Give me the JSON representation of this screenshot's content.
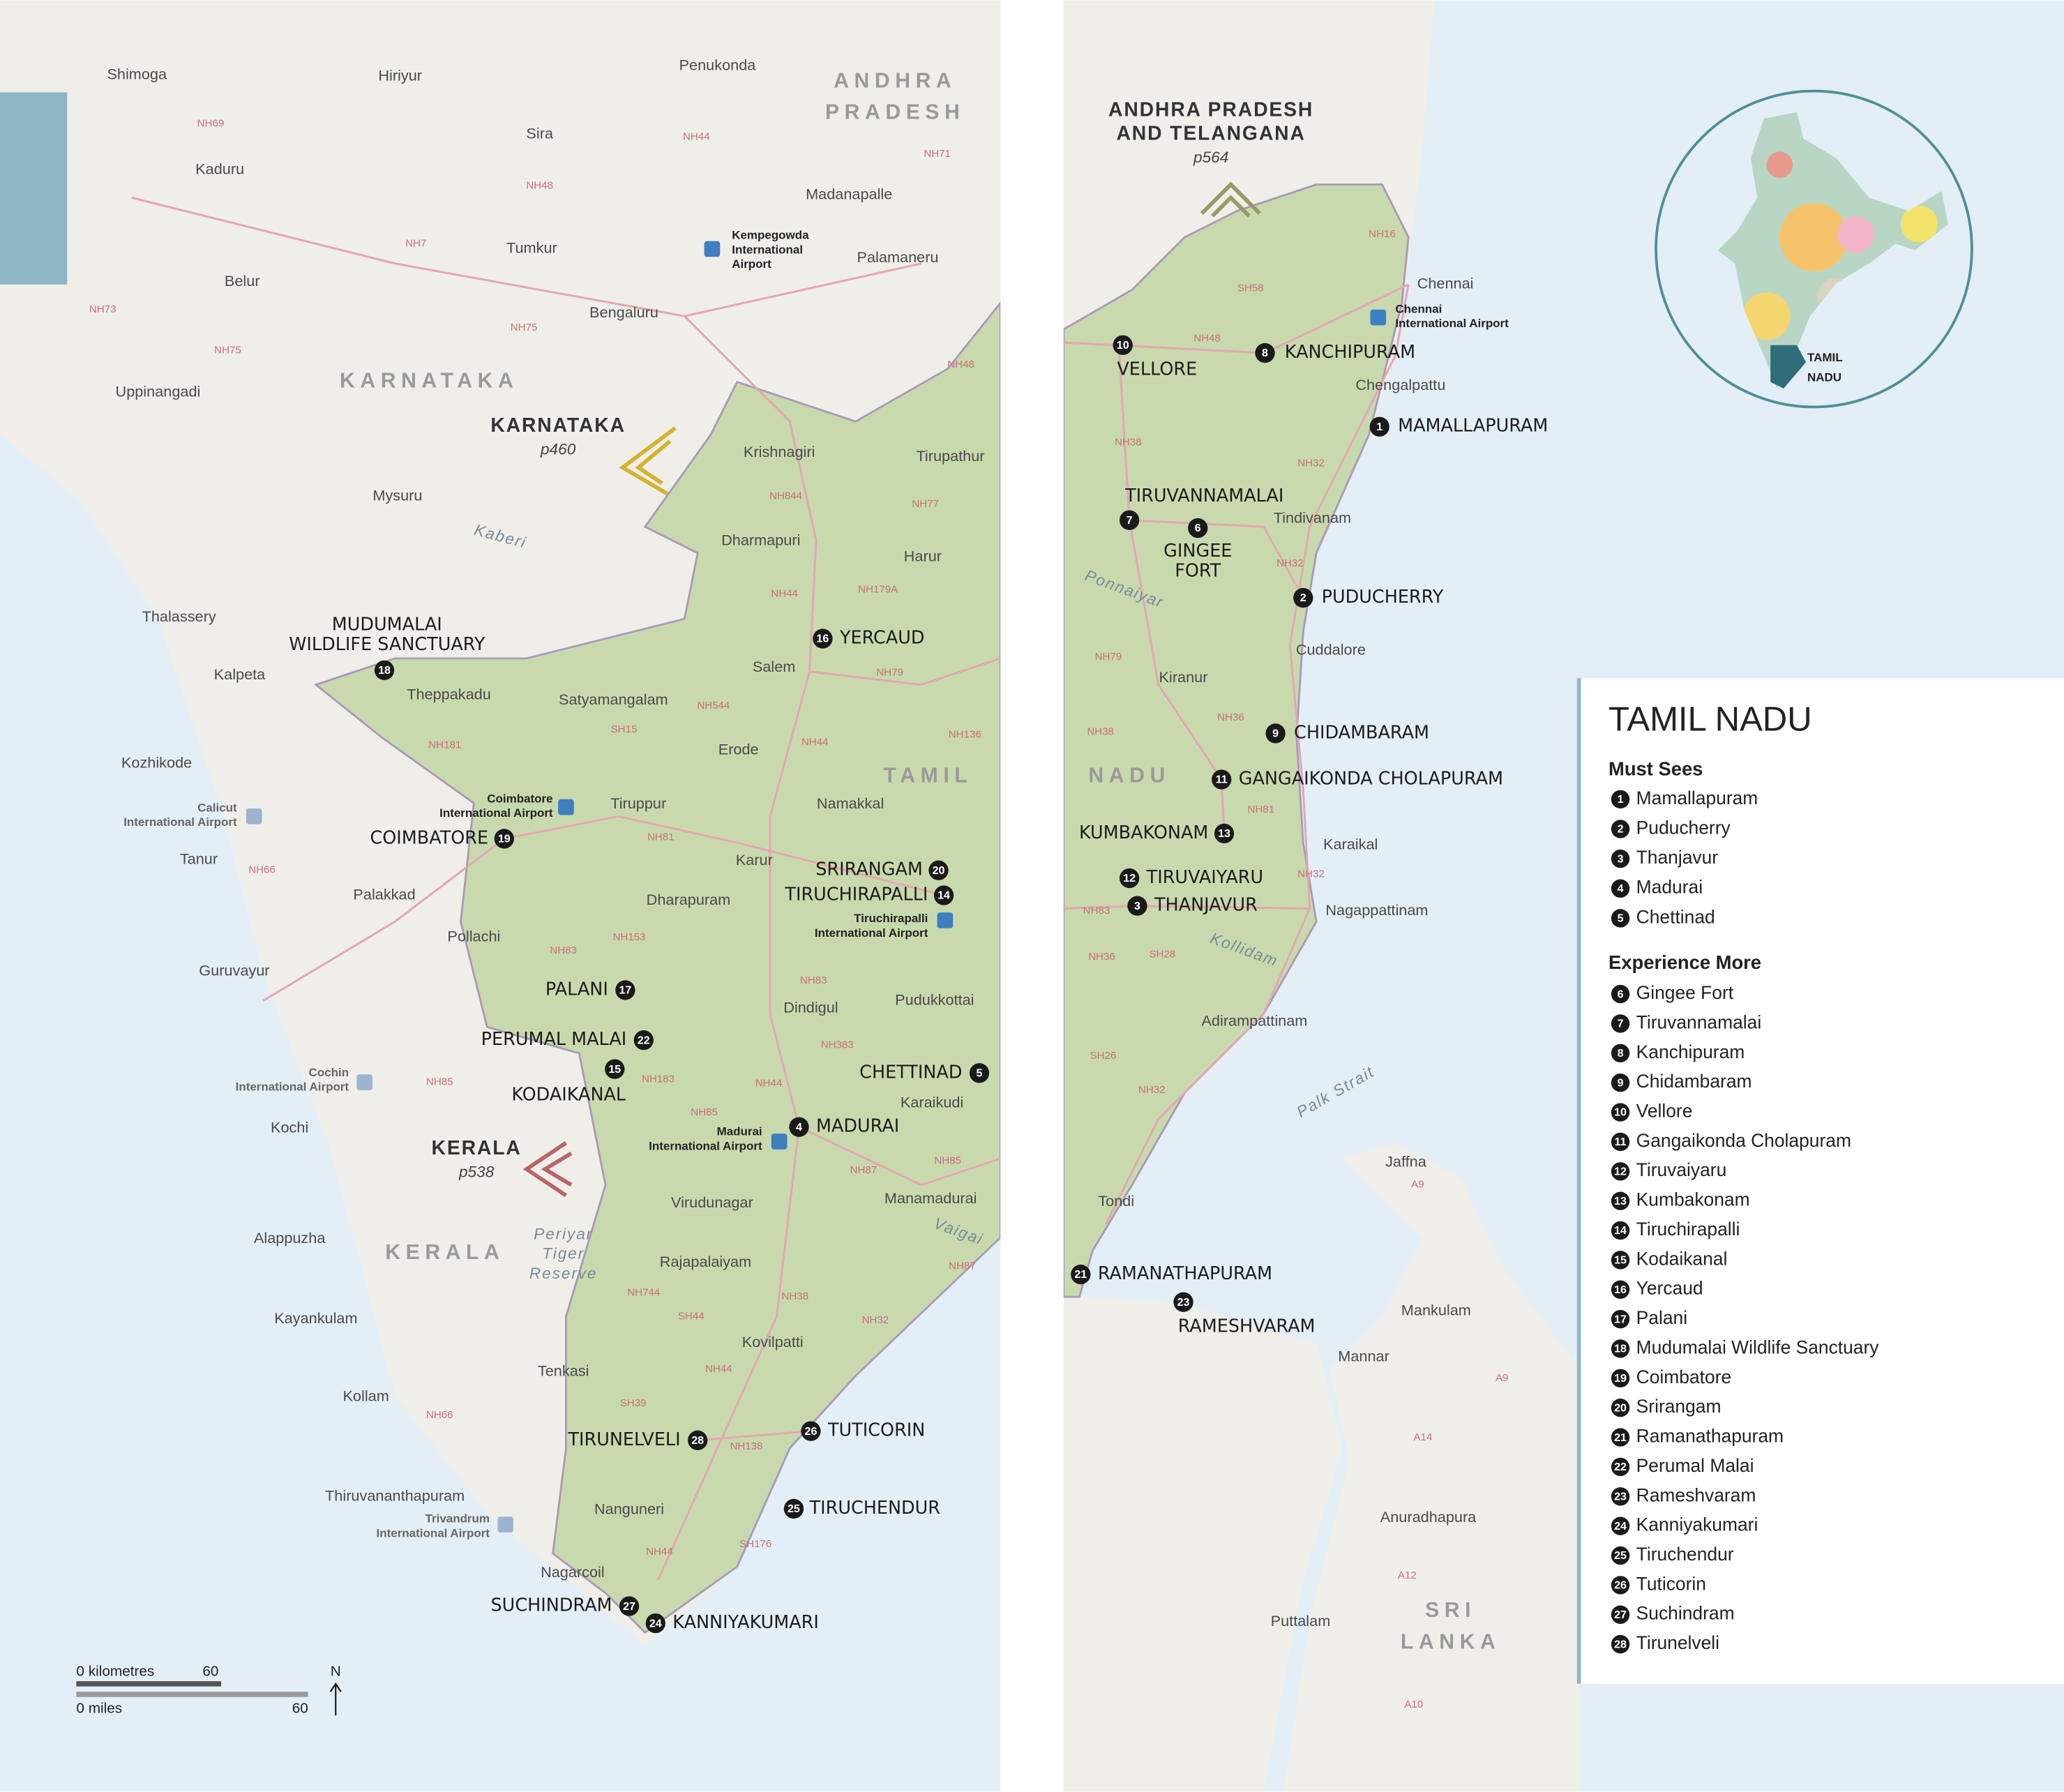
{
  "legend": {
    "title": "TAMIL NADU",
    "must_sees": {
      "heading": "Must Sees",
      "items": [
        {
          "number": 1,
          "name": "Mamallapuram"
        },
        {
          "number": 2,
          "name": "Puducherry"
        },
        {
          "number": 3,
          "name": "Thanjavur"
        },
        {
          "number": 4,
          "name": "Madurai"
        },
        {
          "number": 5,
          "name": "Chettinad"
        }
      ]
    },
    "experience_more": {
      "heading": "Experience More",
      "items": [
        {
          "number": 6,
          "name": "Gingee Fort"
        },
        {
          "number": 7,
          "name": "Tiruvannamalai"
        },
        {
          "number": 8,
          "name": "Kanchipuram"
        },
        {
          "number": 9,
          "name": "Chidambaram"
        },
        {
          "number": 10,
          "name": "Vellore"
        },
        {
          "number": 11,
          "name": "Gangaikonda Cholapuram"
        },
        {
          "number": 12,
          "name": "Tiruvaiyaru"
        },
        {
          "number": 13,
          "name": "Kumbakonam"
        },
        {
          "number": 14,
          "name": "Tiruchirapalli"
        },
        {
          "number": 15,
          "name": "Kodaikanal"
        },
        {
          "number": 16,
          "name": "Yercaud"
        },
        {
          "number": 17,
          "name": "Palani"
        },
        {
          "number": 18,
          "name": "Mudumalai Wildlife Sanctuary"
        },
        {
          "number": 19,
          "name": "Coimbatore"
        },
        {
          "number": 20,
          "name": "Srirangam"
        },
        {
          "number": 21,
          "name": "Ramanathapuram"
        },
        {
          "number": 22,
          "name": "Perumal Malai"
        },
        {
          "number": 23,
          "name": "Rameshvaram"
        },
        {
          "number": 24,
          "name": "Kanniyakumari"
        },
        {
          "number": 25,
          "name": "Tiruchendur"
        },
        {
          "number": 26,
          "name": "Tuticorin"
        },
        {
          "number": 27,
          "name": "Suchindram"
        },
        {
          "number": 28,
          "name": "Tirunelveli"
        }
      ]
    }
  },
  "map": {
    "sights": [
      {
        "number": 1,
        "label": [
          "MAMALLAPURAM"
        ]
      },
      {
        "number": 2,
        "label": [
          "PUDUCHERRY"
        ]
      },
      {
        "number": 3,
        "label": [
          "THANJAVUR"
        ]
      },
      {
        "number": 4,
        "label": [
          "MADURAI"
        ]
      },
      {
        "number": 5,
        "label": [
          "CHETTINAD"
        ]
      },
      {
        "number": 6,
        "label": [
          "GINGEE",
          "FORT"
        ]
      },
      {
        "number": 7,
        "label": [
          "TIRUVANNAMALAI"
        ]
      },
      {
        "number": 8,
        "label": [
          "KANCHIPURAM"
        ]
      },
      {
        "number": 9,
        "label": [
          "CHIDAMBARAM"
        ]
      },
      {
        "number": 10,
        "label": [
          "VELLORE"
        ]
      },
      {
        "number": 11,
        "label": [
          "GANGAIKONDA CHOLAPURAM"
        ]
      },
      {
        "number": 12,
        "label": [
          "TIRUVAIYARU"
        ]
      },
      {
        "number": 13,
        "label": [
          "KUMBAKONAM"
        ]
      },
      {
        "number": 14,
        "label": [
          "TIRUCHIRAPALLI"
        ]
      },
      {
        "number": 15,
        "label": [
          "KODAIKANAL"
        ]
      },
      {
        "number": 16,
        "label": [
          "YERCAUD"
        ]
      },
      {
        "number": 17,
        "label": [
          "PALANI"
        ]
      },
      {
        "number": 18,
        "label": [
          "MUDUMALAI",
          "WILDLIFE SANCTUARY"
        ]
      },
      {
        "number": 19,
        "label": [
          "COIMBATORE"
        ]
      },
      {
        "number": 20,
        "label": [
          "SRIRANGAM"
        ]
      },
      {
        "number": 21,
        "label": [
          "RAMANATHAPURAM"
        ]
      },
      {
        "number": 22,
        "label": [
          "PERUMAL MALAI"
        ]
      },
      {
        "number": 23,
        "label": [
          "RAMESHVARAM"
        ]
      },
      {
        "number": 24,
        "label": [
          "KANNIYAKUMARI"
        ]
      },
      {
        "number": 25,
        "label": [
          "TIRUCHENDUR"
        ]
      },
      {
        "number": 26,
        "label": [
          "TUTICORIN"
        ]
      },
      {
        "number": 27,
        "label": [
          "SUCHINDRAM"
        ]
      },
      {
        "number": 28,
        "label": [
          "TIRUNELVELI"
        ]
      }
    ],
    "towns": [
      "Shimoga",
      "Hiriyur",
      "Penukonda",
      "Sira",
      "Kaduru",
      "Madanapalle",
      "Tumkur",
      "Palamaneru",
      "Belur",
      "Bengaluru",
      "Uppinangadi",
      "Mysuru",
      "Krishnagiri",
      "Tirupathur",
      "Dharmapuri",
      "Harur",
      "Thalassery",
      "Kalpeta",
      "Salem",
      "Theppakadu",
      "Satyamangalam",
      "Erode",
      "Kozhikode",
      "Namakkal",
      "Tiruppur",
      "Tanur",
      "Karur",
      "Palakkad",
      "Dharapuram",
      "Pollachi",
      "Guruvayur",
      "Pudukkottai",
      "Dindigul",
      "Karaikudi",
      "Kochi",
      "Manamadurai",
      "Virudunagar",
      "Alappuzha",
      "Rajapalaiyam",
      "Kayankulam",
      "Kovilpatti",
      "Tenkasi",
      "Kollam",
      "Thiruvananthapuram",
      "Nanguneri",
      "Nagarcoil",
      "Chennai",
      "Chengalpattu",
      "Tindivanam",
      "Cuddalore",
      "Kiranur",
      "Karaikal",
      "Nagappattinam",
      "Adirampattinam",
      "Tondi",
      "Jaffna",
      "Mankulam",
      "Mannar",
      "Anuradhapura",
      "Puttalam"
    ],
    "airports": [
      [
        "Kempegowda",
        "International",
        "Airport"
      ],
      [
        "Chennai",
        "International Airport"
      ],
      [
        "Coimbatore",
        "International Airport"
      ],
      [
        "Calicut",
        "International Airport"
      ],
      [
        "Tiruchirapalli",
        "International Airport"
      ],
      [
        "Cochin",
        "International Airport"
      ],
      [
        "Madurai",
        "International Airport"
      ],
      [
        "Trivandrum",
        "International Airport"
      ]
    ],
    "regions": [
      [
        "ANDHRA",
        "PRADESH"
      ],
      [
        "KARNATAKA"
      ],
      [
        "TAMIL"
      ],
      [
        "NADU"
      ],
      [
        "KERALA"
      ],
      [
        "SRI",
        "LANKA"
      ]
    ],
    "cross_references": [
      {
        "name": [
          "KARNATAKA"
        ],
        "page": "p460"
      },
      {
        "name": [
          "KERALA"
        ],
        "page": "p538"
      },
      {
        "name": [
          "ANDHRA PRADESH",
          "AND TELANGANA"
        ],
        "page": "p564"
      }
    ],
    "waters": [
      "Kaberi",
      "Ponnaiyar",
      "Kollidam",
      "Vaigai",
      "Palk Strait"
    ],
    "reserve": [
      "Periyar",
      "Tiger",
      "Reserve"
    ],
    "roads": [
      "NH69",
      "NH48",
      "NH44",
      "NH71",
      "NH7",
      "NH73",
      "NH75",
      "NH75",
      "NH48",
      "NH844",
      "NH77",
      "NH179A",
      "NH44",
      "NH79",
      "NH544",
      "SH15",
      "NH181",
      "NH136",
      "NH44",
      "NH81",
      "NH66",
      "NH153",
      "NH83",
      "NH83",
      "NH383",
      "NH85",
      "NH183",
      "NH85",
      "NH44",
      "NH87",
      "NH85",
      "NH87",
      "NH744",
      "SH44",
      "NH38",
      "NH32",
      "NH44",
      "SH39",
      "NH138",
      "NH66",
      "SH176",
      "NH44",
      "NH16",
      "SH58",
      "NH48",
      "NH38",
      "NH32",
      "NH32",
      "NH79",
      "NH36",
      "NH38",
      "NH81",
      "NH32",
      "NH83",
      "SH28",
      "NH36",
      "SH26",
      "NH32",
      "A9",
      "A9",
      "A14",
      "A12",
      "A10"
    ],
    "inset": {
      "label": [
        "TAMIL",
        "NADU"
      ]
    },
    "scale": {
      "km_label": "0 kilometres",
      "km_value": 60,
      "miles_label": "0 miles",
      "miles_value": 60,
      "north": "N"
    }
  }
}
